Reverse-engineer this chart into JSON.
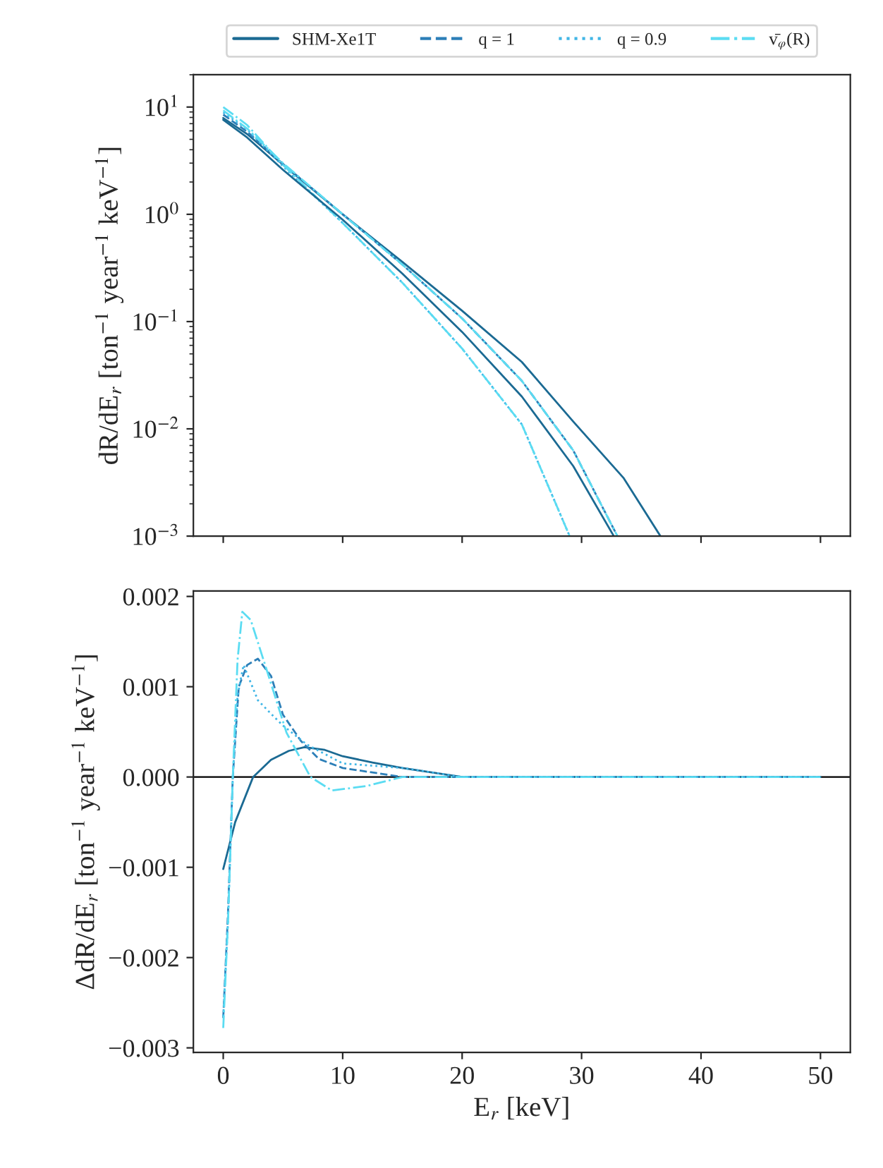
{
  "chart_data": [
    {
      "type": "line",
      "ylabel": "dR/dE$_{r}$ [ton$^{−1}$ year$^{−1}$ keV$^{−1}$]",
      "log": "y",
      "legend": "top",
      "tick_labels": "y",
      "xlim": [
        -2.5,
        52.5
      ],
      "xticks": [
        {
          "value": 0,
          "label": null
        },
        {
          "value": 10,
          "label": null
        },
        {
          "value": 20,
          "label": null
        },
        {
          "value": 30,
          "label": null
        },
        {
          "value": 40,
          "label": null
        },
        {
          "value": 50,
          "label": null
        }
      ],
      "ylim": [
        0.001,
        20
      ],
      "yticks": [
        {
          "value": 0.001,
          "label": "10$^{−3}$"
        },
        {
          "value": 0.01,
          "label": "10$^{−2}$"
        },
        {
          "value": 0.1,
          "label": "10$^{−1}$"
        },
        {
          "value": 1,
          "label": "10$^{0}$"
        },
        {
          "value": 10,
          "label": "10$^{1}$"
        }
      ],
      "series": [
        {
          "name": "SHM-Xe1T",
          "color": "#1b6a93",
          "line_style": "solid",
          "x": [
            0,
            2,
            5,
            10,
            15,
            20,
            25,
            29.3,
            33.5,
            36.6
          ],
          "values": [
            7.9,
            5.6,
            2.9,
            1.0,
            0.36,
            0.126,
            0.042,
            0.0117,
            0.0035,
            0.001
          ]
        },
        {
          "name": "q = 1",
          "color": "#2c7fb8",
          "line_style": "dashed",
          "x": [
            0,
            2,
            5,
            10,
            15,
            20,
            25,
            29.3,
            33
          ],
          "values": [
            8.5,
            5.9,
            2.95,
            1.0,
            0.34,
            0.107,
            0.028,
            0.0063,
            0.001
          ]
        },
        {
          "name": "q = 0.9",
          "color": "#41b6e6",
          "line_style": "dotted",
          "x": [
            0,
            2,
            5,
            10,
            15,
            20,
            25,
            29
          ],
          "values": [
            8.9,
            6.2,
            2.8,
            0.83,
            0.23,
            0.056,
            0.011,
            0.001
          ]
        },
        {
          "name": "v̄$_{φ}$(R)",
          "color": "#5bdcf2",
          "line_style": "dashdot",
          "x": [
            0,
            2,
            5,
            10,
            15,
            20,
            25,
            29
          ],
          "values": [
            10,
            6.8,
            2.9,
            0.83,
            0.23,
            0.056,
            0.011,
            0.001
          ]
        },
        {
          "color": "#1b6a93",
          "line_style": "solid",
          "x": [
            0,
            2,
            5,
            10,
            15,
            20,
            25,
            29.3,
            32.7
          ],
          "values": [
            7.6,
            5.2,
            2.6,
            0.89,
            0.28,
            0.08,
            0.02,
            0.0045,
            0.001
          ]
        },
        {
          "color": "#5bdcf2",
          "line_style": "dashdot",
          "x": [
            0,
            2,
            5,
            10,
            15,
            20,
            25,
            29.3,
            33
          ],
          "values": [
            9.3,
            6.3,
            3.0,
            1.0,
            0.34,
            0.107,
            0.028,
            0.0063,
            0.001
          ]
        }
      ]
    },
    {
      "type": "line",
      "xlabel": "E$_{r}$ [keV]",
      "ylabel": "ΔdR/dE$_{r}$ [ton$^{−1}$ year$^{−1}$ keV$^{−1}$]",
      "xlim": [
        -2.5,
        52.5
      ],
      "xticks": [
        0,
        10,
        20,
        30,
        40,
        50
      ],
      "ylim": [
        -0.00305,
        0.00206
      ],
      "yticks": [
        {
          "value": -0.003,
          "label": "−0.003"
        },
        {
          "value": -0.002,
          "label": "−0.002"
        },
        {
          "value": -0.001,
          "label": "−0.001"
        },
        {
          "value": 0,
          "label": "0.000"
        },
        {
          "value": 0.001,
          "label": "0.001"
        },
        {
          "value": 0.002,
          "label": "0.002"
        }
      ],
      "ref_lines": [
        {
          "axis": "y",
          "value": 0,
          "color": "#000000"
        }
      ],
      "series": [
        {
          "color": "#1b6a93",
          "line_style": "solid",
          "x": [
            0,
            1,
            2.5,
            4,
            5.5,
            6.8,
            8.5,
            10,
            12.5,
            15,
            20,
            25,
            30,
            40,
            50
          ],
          "values": [
            -0.00102,
            -0.0005,
            0.0,
            0.00019,
            0.00029,
            0.00033,
            0.0003,
            0.00023,
            0.00016,
            0.0001,
            0.0,
            0.0,
            0.0,
            0.0,
            0.0
          ]
        },
        {
          "color": "#2c7fb8",
          "line_style": "dashed",
          "x": [
            0,
            0.4,
            0.8,
            1.3,
            2,
            2.9,
            4,
            5,
            6.5,
            8,
            10,
            15,
            20,
            30,
            40,
            50
          ],
          "values": [
            -0.00267,
            -0.0015,
            0.0,
            0.001,
            0.00124,
            0.00131,
            0.00112,
            0.00069,
            0.0004,
            0.0002,
            0.0001,
            0.0,
            0.0,
            0.0,
            0.0,
            0.0
          ]
        },
        {
          "color": "#41b6e6",
          "line_style": "dotted",
          "x": [
            0,
            0.4,
            0.8,
            1.2,
            1.7,
            2.9,
            4,
            5,
            7,
            10,
            15,
            20,
            30,
            40,
            50
          ],
          "values": [
            -0.00265,
            -0.0016,
            0.0,
            0.0009,
            0.00124,
            0.00085,
            0.0007,
            0.00057,
            0.00036,
            0.00015,
            0.0001,
            0.0,
            0.0,
            0.0,
            0.0
          ]
        },
        {
          "color": "#5bdcf2",
          "line_style": "dashdot",
          "x": [
            0,
            0.4,
            0.8,
            1.2,
            1.6,
            2.3,
            3.7,
            5.3,
            7.3,
            9.1,
            12,
            15,
            20,
            30,
            40,
            50
          ],
          "values": [
            -0.00278,
            -0.0016,
            0.0,
            0.0013,
            0.00183,
            0.00174,
            0.00116,
            0.00049,
            0.0,
            -0.00015,
            -0.0001,
            0.0,
            0.0,
            0.0,
            0.0,
            0.0
          ]
        }
      ]
    }
  ]
}
